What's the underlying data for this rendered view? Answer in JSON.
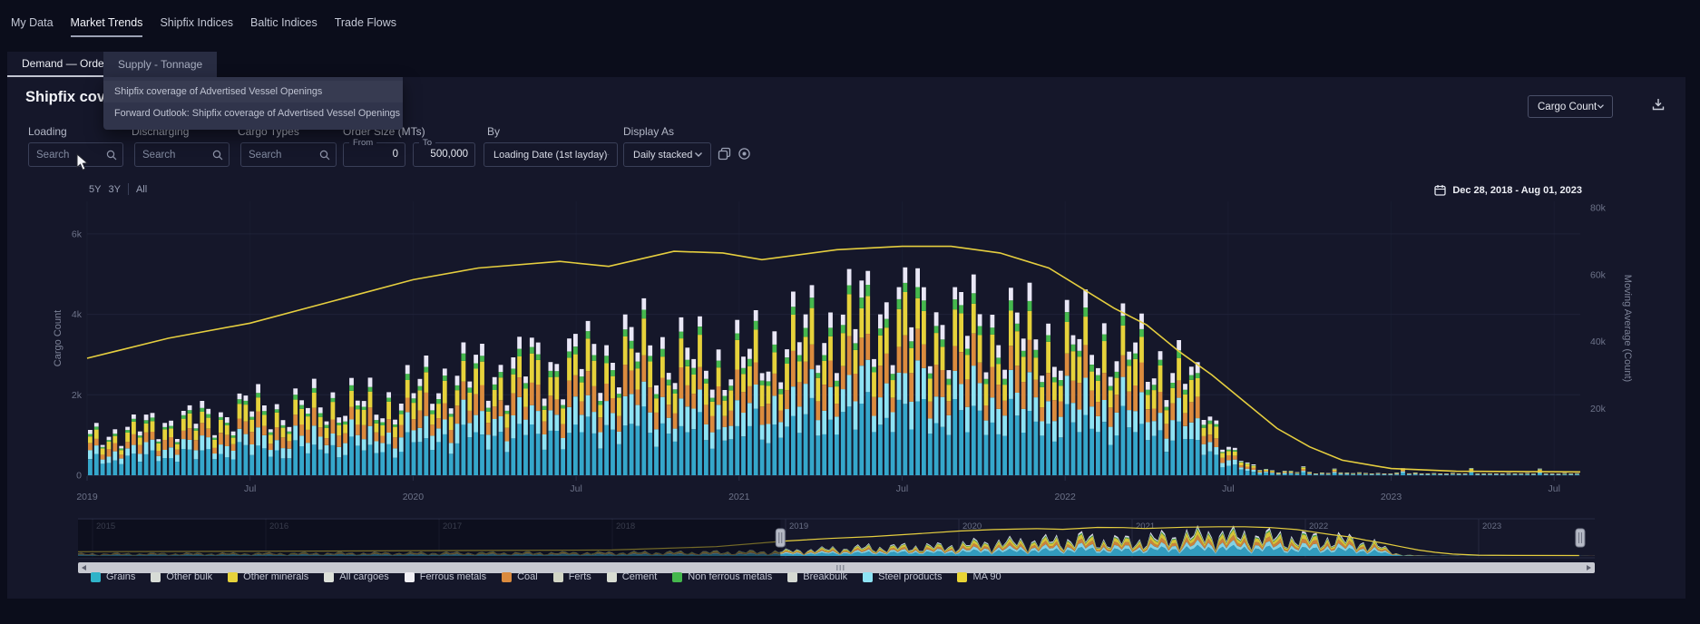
{
  "nav": {
    "items": [
      {
        "label": "My Data",
        "active": false
      },
      {
        "label": "Market Trends",
        "active": true
      },
      {
        "label": "Shipfix Indices",
        "active": false
      },
      {
        "label": "Baltic Indices",
        "active": false
      },
      {
        "label": "Trade Flows",
        "active": false
      }
    ]
  },
  "tabs": [
    {
      "label": "Demand — Orders",
      "active": true
    },
    {
      "label": "Supply - Tonnage",
      "active": false
    }
  ],
  "dropdown": {
    "items": [
      "Shipfix coverage of Advertised Vessel Openings",
      "Forward Outlook: Shipfix coverage of Advertised Vessel Openings"
    ]
  },
  "title_visible": "Shipfix cover",
  "filters": {
    "loading": {
      "label": "Loading",
      "placeholder": "Search"
    },
    "discharging": {
      "label": "Discharging",
      "placeholder": "Search"
    },
    "cargo_types": {
      "label": "Cargo Types",
      "placeholder": "Search"
    },
    "order_size": {
      "label": "Order Size (MTs)",
      "from_label": "From",
      "from_value": "0",
      "to_label": "To",
      "to_value": "500,000"
    },
    "by": {
      "label": "By",
      "value": "Loading Date (1st layday)"
    },
    "display_as": {
      "label": "Display As",
      "value": "Daily stacked"
    }
  },
  "toolbar": {
    "metric_select": "Cargo Count"
  },
  "icons": {
    "search": "magnifier",
    "chevron": "chevron-down",
    "calendar": "calendar",
    "download": "tray-down-arrow",
    "copy": "overlapping-squares",
    "target": "circled-dot",
    "scroll_left": "triangle-left",
    "scroll_right": "triangle-right",
    "cursor": "mouse-pointer"
  },
  "chart": {
    "type": "bar-stacked-with-line",
    "range_buttons": [
      "5Y",
      "3Y",
      "All"
    ],
    "date_range": "Dec 28, 2018 - Aug 01, 2023",
    "left_axis_title": "Cargo Count",
    "right_axis_title": "Moving Average (Count)",
    "left_ticks": [
      [
        0,
        "0"
      ],
      [
        2,
        "2k"
      ],
      [
        4,
        "4k"
      ],
      [
        6,
        "6k"
      ]
    ],
    "right_ticks": [
      [
        20,
        "20k"
      ],
      [
        40,
        "40k"
      ],
      [
        60,
        "60k"
      ],
      [
        80,
        "80k"
      ]
    ],
    "x_ticks": [
      [
        "2019",
        2019.0
      ],
      [
        "Jul",
        2019.5
      ],
      [
        "2020",
        2020.0
      ],
      [
        "Jul",
        2020.5
      ],
      [
        "2021",
        2021.0
      ],
      [
        "Jul",
        2021.5
      ],
      [
        "2022",
        2022.0
      ],
      [
        "Jul",
        2022.5
      ],
      [
        "2023",
        2023.0
      ],
      [
        "Jul",
        2023.5
      ]
    ],
    "t_start": 2019.0,
    "t_end": 2023.58,
    "bar_count": 240,
    "bar_total_envelope_k": [
      [
        2019.0,
        1.15
      ],
      [
        2019.1,
        1.3
      ],
      [
        2019.25,
        1.6
      ],
      [
        2019.4,
        1.75
      ],
      [
        2019.5,
        2.05
      ],
      [
        2019.6,
        1.9
      ],
      [
        2019.75,
        2.2
      ],
      [
        2019.9,
        2.1
      ],
      [
        2020.0,
        2.5
      ],
      [
        2020.1,
        2.9
      ],
      [
        2020.25,
        3.1
      ],
      [
        2020.4,
        3.3
      ],
      [
        2020.55,
        3.5
      ],
      [
        2020.7,
        3.9
      ],
      [
        2020.8,
        3.6
      ],
      [
        2020.95,
        3.3
      ],
      [
        2021.05,
        3.6
      ],
      [
        2021.2,
        4.2
      ],
      [
        2021.35,
        4.7
      ],
      [
        2021.45,
        5.0
      ],
      [
        2021.55,
        4.8
      ],
      [
        2021.7,
        4.5
      ],
      [
        2021.85,
        4.3
      ],
      [
        2022.0,
        3.9
      ],
      [
        2022.1,
        4.1
      ],
      [
        2022.2,
        3.7
      ],
      [
        2022.3,
        3.3
      ],
      [
        2022.4,
        2.7
      ],
      [
        2022.45,
        1.8
      ],
      [
        2022.5,
        0.8
      ],
      [
        2022.56,
        0.3
      ],
      [
        2022.65,
        0.12
      ],
      [
        2022.8,
        0.07
      ],
      [
        2023.0,
        0.06
      ],
      [
        2023.3,
        0.05
      ],
      [
        2023.58,
        0.05
      ]
    ],
    "stack_segments": [
      {
        "name": "Grains",
        "color": "#35a7cb",
        "frac": 0.36
      },
      {
        "name": "Steel products",
        "color": "#8ee3f4",
        "frac": 0.17
      },
      {
        "name": "Coal",
        "color": "#db8b3e",
        "frac": 0.16
      },
      {
        "name": "Other minerals",
        "color": "#e6d23b",
        "frac": 0.18
      },
      {
        "name": "Non ferrous metals",
        "color": "#45b84d",
        "frac": 0.05
      },
      {
        "name": "Ferrous metals",
        "color": "#e9e7f6",
        "frac": 0.08
      }
    ],
    "ma_line_k": [
      [
        2019.0,
        35
      ],
      [
        2019.25,
        41
      ],
      [
        2019.5,
        45.5
      ],
      [
        2019.75,
        52
      ],
      [
        2020.0,
        58.5
      ],
      [
        2020.2,
        62
      ],
      [
        2020.45,
        64
      ],
      [
        2020.6,
        62.5
      ],
      [
        2020.8,
        67
      ],
      [
        2020.95,
        66.5
      ],
      [
        2021.07,
        64.5
      ],
      [
        2021.3,
        67.5
      ],
      [
        2021.5,
        68.5
      ],
      [
        2021.65,
        68.5
      ],
      [
        2021.8,
        66.5
      ],
      [
        2021.95,
        62
      ],
      [
        2022.05,
        56
      ],
      [
        2022.15,
        50
      ],
      [
        2022.25,
        45
      ],
      [
        2022.35,
        37
      ],
      [
        2022.45,
        30
      ],
      [
        2022.55,
        22
      ],
      [
        2022.65,
        14
      ],
      [
        2022.75,
        8.5
      ],
      [
        2022.85,
        4.5
      ],
      [
        2023.0,
        2
      ],
      [
        2023.2,
        1.2
      ],
      [
        2023.58,
        1
      ]
    ],
    "ma_color": "#e5ce3f"
  },
  "navigator": {
    "years": [
      "2015",
      "2016",
      "2017",
      "2018",
      "2019",
      "2020",
      "2021",
      "2022",
      "2023"
    ],
    "t_start": 2014.916,
    "t_end": 2023.67,
    "selection": [
      2018.97,
      2023.586
    ],
    "envelope_pre_k": [
      [
        2014.916,
        0.5
      ],
      [
        2015.5,
        0.55
      ],
      [
        2016,
        0.6
      ],
      [
        2016.5,
        0.65
      ],
      [
        2017,
        0.7
      ],
      [
        2017.5,
        0.72
      ],
      [
        2018,
        0.78
      ],
      [
        2018.5,
        0.85
      ],
      [
        2018.9,
        1.0
      ]
    ],
    "ma_pre_k": [
      [
        2014.916,
        10
      ],
      [
        2016,
        11
      ],
      [
        2017,
        12.5
      ],
      [
        2018,
        14
      ],
      [
        2018.6,
        22
      ]
    ]
  },
  "legend": [
    {
      "label": "Grains",
      "color": "#2fb3c9"
    },
    {
      "label": "Other bulk",
      "color": "#d7dcd6"
    },
    {
      "label": "Other minerals",
      "color": "#e6d23b"
    },
    {
      "label": "All cargoes",
      "color": "#dde1da"
    },
    {
      "label": "Ferrous metals",
      "color": "#f1f0f6"
    },
    {
      "label": "Coal",
      "color": "#db8b3e"
    },
    {
      "label": "Ferts",
      "color": "#d2d6c6"
    },
    {
      "label": "Cement",
      "color": "#d9ddd3"
    },
    {
      "label": "Non ferrous metals",
      "color": "#45b84d"
    },
    {
      "label": "Breakbulk",
      "color": "#d5d9d3"
    },
    {
      "label": "Steel products",
      "color": "#8ee3f4"
    },
    {
      "label": "MA 90",
      "color": "#e8d435"
    }
  ],
  "colors": {
    "page_bg": "#0b0d1b",
    "panel_bg": "#15172a",
    "grid": "#1f2238",
    "axis_text": "#6d7389",
    "accent_line": "#e5ce3f"
  }
}
